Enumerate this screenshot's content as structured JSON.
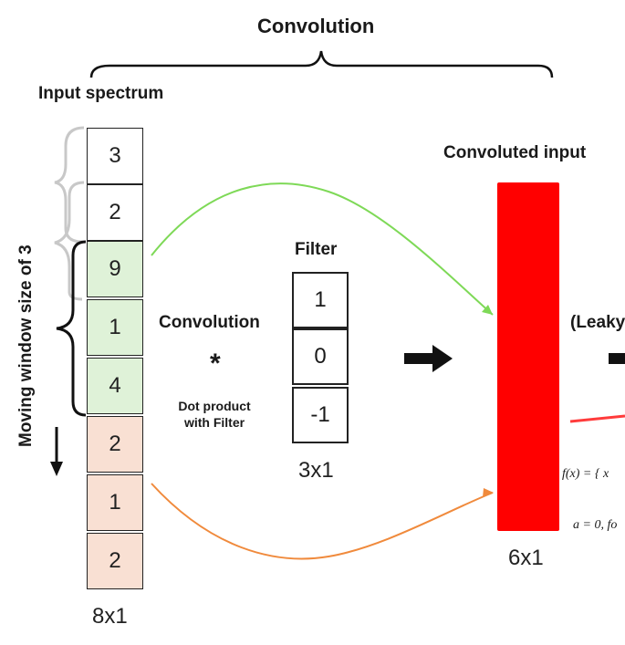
{
  "title": "Convolution",
  "input": {
    "label": "Input spectrum",
    "values": [
      "3",
      "2",
      "9",
      "1",
      "4",
      "2",
      "1",
      "2"
    ],
    "dim": "8x1",
    "window_label": "Moving window size of 3"
  },
  "operation": {
    "label": "Convolution",
    "symbol": "*",
    "desc_line1": "Dot product",
    "desc_line2": "with Filter"
  },
  "filter": {
    "label": "Filter",
    "values": [
      "1",
      "0",
      "-1"
    ],
    "dim": "3x1"
  },
  "output": {
    "label": "Convoluted input",
    "dim": "6x1",
    "color": "#ff0000"
  },
  "activation": {
    "label_partial": "(Leaky",
    "formula_line1": "f(x) = { x",
    "formula_line2": "a = 0, fo"
  },
  "colors": {
    "window_fill": "#dff2d8",
    "rest_fill": "#f9e0d3",
    "green_arrow": "#7ed957",
    "orange_arrow": "#f08a3c"
  }
}
